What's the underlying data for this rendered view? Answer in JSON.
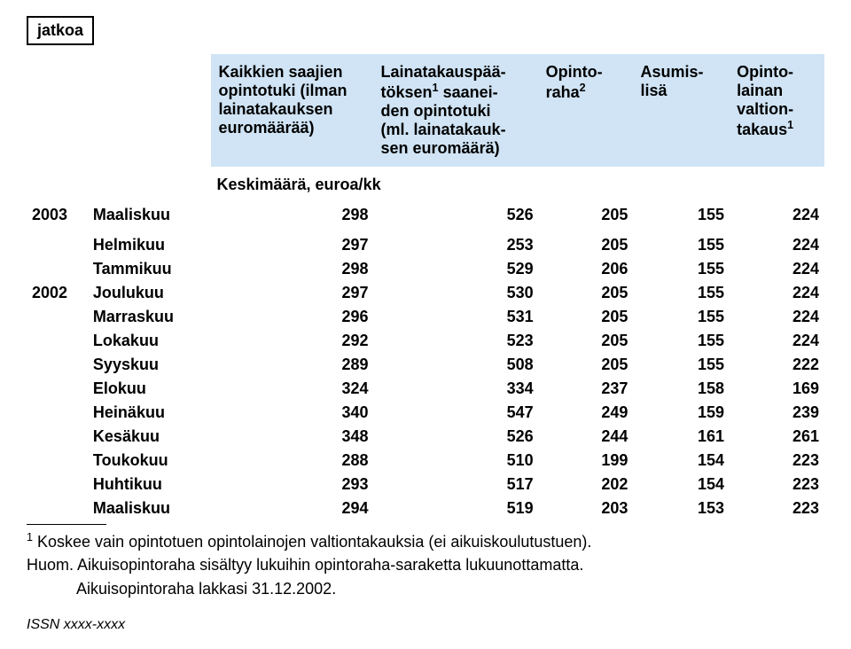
{
  "badge": "jatkoa",
  "headers": {
    "col1": "Kaikkien saajien opintotuki (ilman lainatakauksen euromäärää)",
    "col2_pre": "Lainatakauspää-",
    "col2_mid1": "töksen",
    "col2_sup1": "1",
    "col2_mid2": " saanei-",
    "col2_line3": "den opintotuki",
    "col2_line4": "(ml. lainatakauk-",
    "col2_line5": "sen euromäärä)",
    "col3_pre": "Opinto-",
    "col3_mid": "raha",
    "col3_sup": "2",
    "col4_pre": "Asumis-",
    "col4_line2": "lisä",
    "col5_pre": "Opinto-",
    "col5_line2": "lainan",
    "col5_line3": "valtion-",
    "col5_line4_pre": "takaus",
    "col5_sup": "1"
  },
  "avg_label": "Keskimäärä, euroa/kk",
  "year_2003": "2003",
  "year_2002": "2002",
  "rows": [
    {
      "year": "2003",
      "month": "Maaliskuu",
      "c": [
        "298",
        "526",
        "205",
        "155",
        "224"
      ]
    },
    {
      "year": "",
      "month": "Helmikuu",
      "c": [
        "297",
        "253",
        "205",
        "155",
        "224"
      ]
    },
    {
      "year": "",
      "month": "Tammikuu",
      "c": [
        "298",
        "529",
        "206",
        "155",
        "224"
      ]
    },
    {
      "year": "2002",
      "month": "Joulukuu",
      "c": [
        "297",
        "530",
        "205",
        "155",
        "224"
      ]
    },
    {
      "year": "",
      "month": "Marraskuu",
      "c": [
        "296",
        "531",
        "205",
        "155",
        "224"
      ]
    },
    {
      "year": "",
      "month": "Lokakuu",
      "c": [
        "292",
        "523",
        "205",
        "155",
        "224"
      ]
    },
    {
      "year": "",
      "month": "Syyskuu",
      "c": [
        "289",
        "508",
        "205",
        "155",
        "222"
      ]
    },
    {
      "year": "",
      "month": "Elokuu",
      "c": [
        "324",
        "334",
        "237",
        "158",
        "169"
      ]
    },
    {
      "year": "",
      "month": "Heinäkuu",
      "c": [
        "340",
        "547",
        "249",
        "159",
        "239"
      ]
    },
    {
      "year": "",
      "month": "Kesäkuu",
      "c": [
        "348",
        "526",
        "244",
        "161",
        "261"
      ]
    },
    {
      "year": "",
      "month": "Toukokuu",
      "c": [
        "288",
        "510",
        "199",
        "154",
        "223"
      ]
    },
    {
      "year": "",
      "month": "Huhtikuu",
      "c": [
        "293",
        "517",
        "202",
        "154",
        "223"
      ]
    },
    {
      "year": "",
      "month": "Maaliskuu",
      "c": [
        "294",
        "519",
        "203",
        "153",
        "223"
      ]
    }
  ],
  "footnotes": {
    "f1_sup": "1",
    "f1_text": " Koskee vain opintotuen opintolainojen valtiontakauksia (ei aikuiskoulutustuen).",
    "huom_label": "Huom.",
    "huom_text": " Aikuisopintoraha sisältyy lukuihin opintoraha-saraketta lukuunottamatta.",
    "huom_text2": "Aikuisopintoraha lakkasi 31.12.2002."
  },
  "issn": "ISSN xxxx-xxxx",
  "colors": {
    "header_bg": "#d0e4f5"
  }
}
